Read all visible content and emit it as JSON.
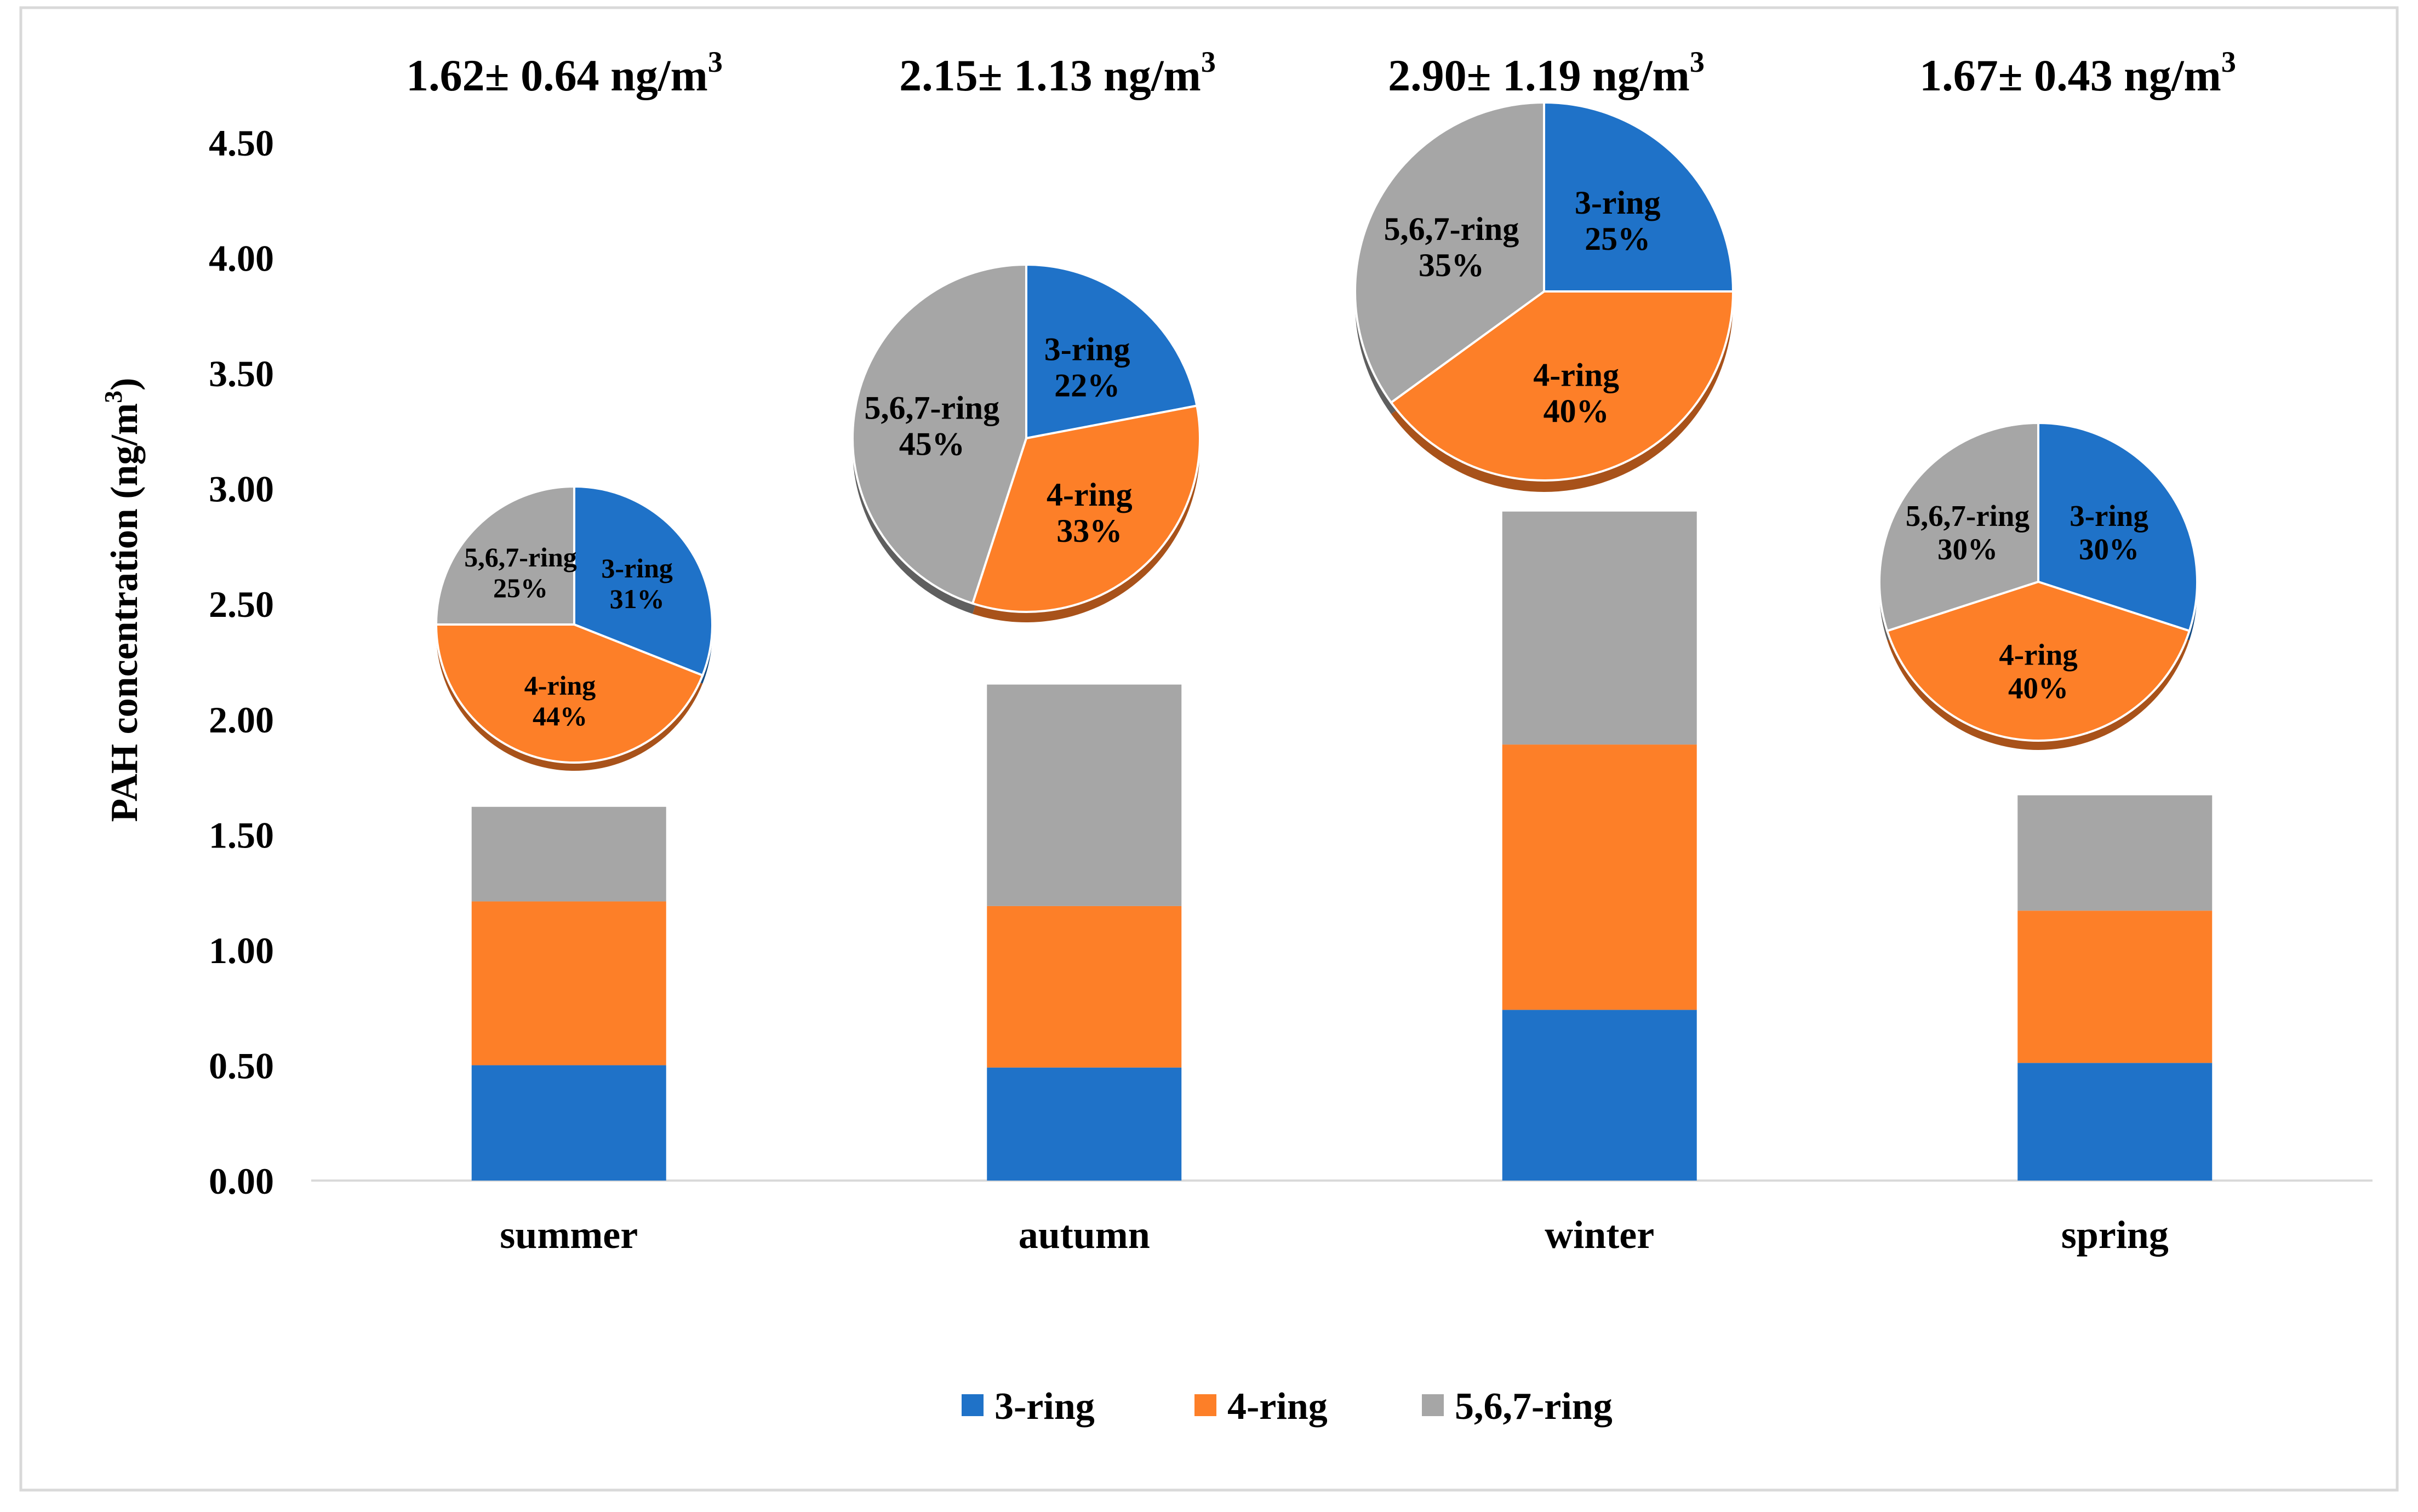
{
  "chart_data": {
    "type": "bar",
    "stacked": true,
    "ylabel_main": "PAH concentration (ng/m",
    "ylabel_sup": "3",
    "ylabel_end": ")",
    "ylim": [
      0,
      4.5
    ],
    "yticks": [
      "0.00",
      "0.50",
      "1.00",
      "1.50",
      "2.00",
      "2.50",
      "3.00",
      "3.50",
      "4.00",
      "4.50"
    ],
    "categories": [
      "summer",
      "autumn",
      "winter",
      "spring"
    ],
    "series": [
      {
        "name": "3-ring",
        "color": "#1f72c8",
        "values": [
          0.5,
          0.49,
          0.74,
          0.51
        ]
      },
      {
        "name": "4-ring",
        "color": "#fd7f28",
        "values": [
          0.71,
          0.7,
          1.15,
          0.66
        ]
      },
      {
        "name": "5,6,7-ring",
        "color": "#a6a6a6",
        "values": [
          0.41,
          0.96,
          1.01,
          0.5
        ]
      }
    ],
    "totals": [
      {
        "main": "1.62± 0.64 ng/m",
        "sup": "3"
      },
      {
        "main": "2.15± 1.13 ng/m",
        "sup": "3"
      },
      {
        "main": "2.90± 1.19 ng/m",
        "sup": "3"
      },
      {
        "main": "1.67± 0.43 ng/m",
        "sup": "3"
      }
    ],
    "pies": [
      {
        "season": "summer",
        "slices": [
          {
            "label": "3-ring",
            "value": 31,
            "pct": "31%"
          },
          {
            "label": "4-ring",
            "value": 44,
            "pct": "44%"
          },
          {
            "label": "5,6,7-ring",
            "value": 25,
            "pct": "25%"
          }
        ]
      },
      {
        "season": "autumn",
        "slices": [
          {
            "label": "3-ring",
            "value": 22,
            "pct": "22%"
          },
          {
            "label": "4-ring",
            "value": 33,
            "pct": "33%"
          },
          {
            "label": "5,6,7-ring",
            "value": 45,
            "pct": "45%"
          }
        ]
      },
      {
        "season": "winter",
        "slices": [
          {
            "label": "3-ring",
            "value": 25,
            "pct": "25%"
          },
          {
            "label": "4-ring",
            "value": 40,
            "pct": "40%"
          },
          {
            "label": "5,6,7-ring",
            "value": 35,
            "pct": "35%"
          }
        ]
      },
      {
        "season": "spring",
        "slices": [
          {
            "label": "3-ring",
            "value": 30,
            "pct": "30%"
          },
          {
            "label": "4-ring",
            "value": 40,
            "pct": "40%"
          },
          {
            "label": "5,6,7-ring",
            "value": 30,
            "pct": "30%"
          }
        ]
      }
    ],
    "legend": [
      "3-ring",
      "4-ring",
      "5,6,7-ring"
    ],
    "legend_position": "bottom"
  }
}
